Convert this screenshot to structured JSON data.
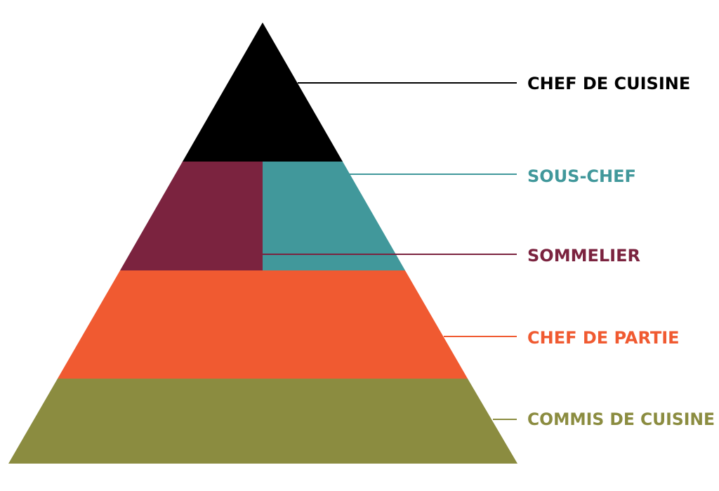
{
  "pyramid": {
    "tiers": [
      {
        "key": "chef-de-cuisine",
        "label": "CHEF DE CUISINE",
        "color": "#000000"
      },
      {
        "key": "sous-chef",
        "label": "SOUS-CHEF",
        "color": "#41989b"
      },
      {
        "key": "sommelier",
        "label": "SOMMELIER",
        "color": "#7b233f"
      },
      {
        "key": "chef-de-partie",
        "label": "CHEF DE PARTIE",
        "color": "#f05a31"
      },
      {
        "key": "commis-de-cuisine",
        "label": "COMMIS DE CUISINE",
        "color": "#8b8c40"
      }
    ]
  }
}
